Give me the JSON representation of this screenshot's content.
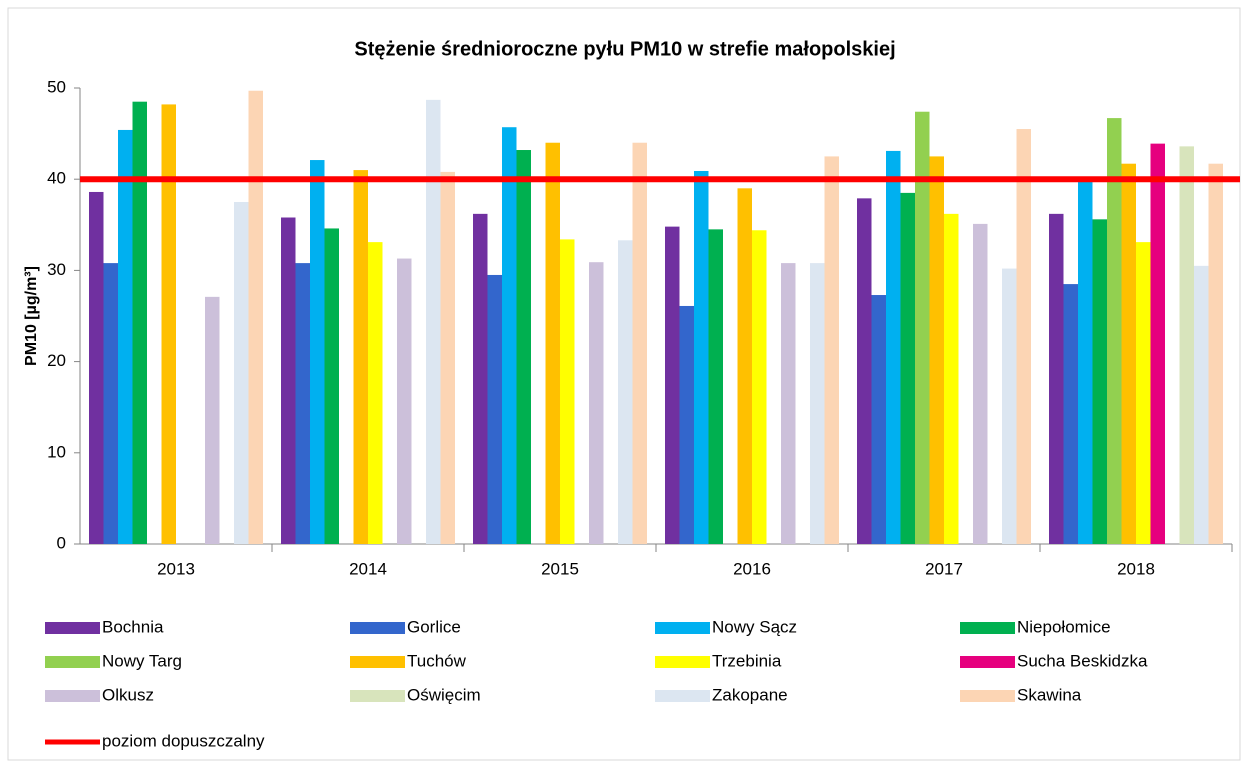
{
  "chart_data": {
    "type": "bar",
    "title": "Stężenie średnioroczne pyłu PM10 w strefie małopolskiej",
    "y_label": "PM10 [µg/m³]",
    "categories": [
      "2013",
      "2014",
      "2015",
      "2016",
      "2017",
      "2018"
    ],
    "series": [
      {
        "name": "Bochnia",
        "color": "#7030a0",
        "values": [
          38.6,
          35.8,
          36.2,
          34.8,
          37.9,
          36.2
        ]
      },
      {
        "name": "Gorlice",
        "color": "#3366cc",
        "values": [
          30.8,
          30.8,
          29.5,
          26.1,
          27.3,
          28.5
        ]
      },
      {
        "name": "Nowy Sącz",
        "color": "#00b0f0",
        "values": [
          45.4,
          42.1,
          45.7,
          40.9,
          43.1,
          40.0
        ]
      },
      {
        "name": "Niepołomice",
        "color": "#00b050",
        "values": [
          48.5,
          34.6,
          43.2,
          34.5,
          38.5,
          35.6
        ]
      },
      {
        "name": "Nowy Targ",
        "color": "#92d050",
        "values": [
          null,
          null,
          null,
          null,
          47.4,
          46.7
        ]
      },
      {
        "name": "Tuchów",
        "color": "#ffc000",
        "values": [
          48.2,
          41.0,
          44.0,
          39.0,
          42.5,
          41.7
        ]
      },
      {
        "name": "Trzebinia",
        "color": "#ffff00",
        "values": [
          null,
          33.1,
          33.4,
          34.4,
          36.2,
          33.1
        ]
      },
      {
        "name": "Sucha Beskidzka",
        "color": "#e6007e",
        "values": [
          null,
          null,
          null,
          null,
          null,
          43.9
        ]
      },
      {
        "name": "Olkusz",
        "color": "#ccc0da",
        "values": [
          27.1,
          31.3,
          30.9,
          30.8,
          35.1,
          null
        ]
      },
      {
        "name": "Oświęcim",
        "color": "#d8e4bc",
        "values": [
          null,
          null,
          null,
          null,
          null,
          43.6
        ]
      },
      {
        "name": "Zakopane",
        "color": "#dce6f1",
        "values": [
          37.5,
          48.7,
          33.3,
          30.8,
          30.2,
          30.5
        ]
      },
      {
        "name": "Skawina",
        "color": "#fcd5b4",
        "values": [
          49.7,
          40.8,
          44.0,
          42.5,
          45.5,
          41.7
        ]
      }
    ],
    "limit": {
      "name": "poziom dopuszczalny",
      "value": 40,
      "color": "#ff0000"
    },
    "ylim": [
      0,
      50
    ],
    "yticks": [
      0,
      10,
      20,
      30,
      40,
      50
    ],
    "grid": false
  }
}
